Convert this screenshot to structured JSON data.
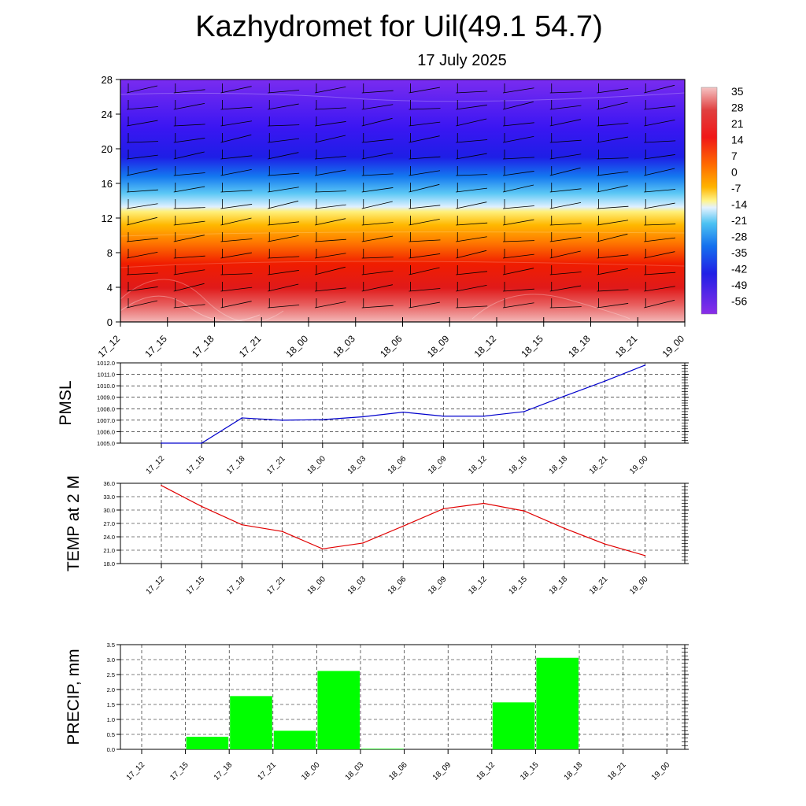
{
  "title": "Kazhydromet for Uil(49.1 54.7)",
  "subtitle": "17 July 2025",
  "colors": {
    "pmsl_line": "#0000cc",
    "temp_line": "#e00000",
    "precip_bar": "#00ff00",
    "grid": "#000000"
  },
  "chart_data": [
    {
      "type": "heatmap",
      "title": "",
      "x": [
        "17_12",
        "17_15",
        "17_18",
        "17_21",
        "18_00",
        "18_03",
        "18_06",
        "18_09",
        "18_12",
        "18_15",
        "18_18",
        "18_21",
        "19_00"
      ],
      "y_ticks": [
        0,
        4,
        8,
        12,
        16,
        20,
        24,
        28
      ],
      "ylim": [
        0,
        28
      ],
      "colorbar_labels": [
        "35",
        "28",
        "21",
        "14",
        "7",
        "0",
        "-7",
        "-14",
        "-21",
        "-28",
        "-35",
        "-42",
        "-49",
        "-56"
      ],
      "colormap": "temperature: deep violet (-56) through blue, cyan, pale yellow near -10, orange, red, pale pink (35)",
      "profile": "warmest near the surface (~35 at lowest levels), decreasing with height; transition to freezing near 13–14; coldest about -56 around 20–28",
      "overlay": "wind barbs at each time step and level",
      "grid": false
    },
    {
      "type": "line",
      "ylabel": "PMSL",
      "x": [
        "17_12",
        "17_15",
        "17_18",
        "17_21",
        "18_00",
        "18_03",
        "18_06",
        "18_09",
        "18_12",
        "18_15",
        "18_18",
        "18_21",
        "19_00"
      ],
      "y_ticks": [
        "1005.0",
        "1006.0",
        "1007.0",
        "1008.0",
        "1009.0",
        "1010.0",
        "1011.0",
        "1012.0"
      ],
      "ylim": [
        1005.0,
        1012.0
      ],
      "series": [
        {
          "values": [
            1005.0,
            1005.0,
            1007.2,
            1007.0,
            1007.05,
            1007.3,
            1007.7,
            1007.35,
            1007.35,
            1007.75,
            1009.1,
            1010.4,
            1011.8
          ]
        }
      ],
      "grid": true
    },
    {
      "type": "line",
      "ylabel": "TEMP at 2 M",
      "x": [
        "17_12",
        "17_15",
        "17_18",
        "17_21",
        "18_00",
        "18_03",
        "18_06",
        "18_09",
        "18_12",
        "18_15",
        "18_18",
        "18_21",
        "19_00"
      ],
      "y_ticks": [
        "18.0",
        "21.0",
        "24.0",
        "27.0",
        "30.0",
        "33.0",
        "36.0"
      ],
      "ylim": [
        18.0,
        36.0
      ],
      "series": [
        {
          "values": [
            35.5,
            30.8,
            26.7,
            25.2,
            21.3,
            22.6,
            26.4,
            30.3,
            31.5,
            29.8,
            25.9,
            22.4,
            19.8
          ]
        }
      ],
      "grid": true
    },
    {
      "type": "bar",
      "ylabel": "PRECIP, mm",
      "x": [
        "17_12",
        "17_15",
        "17_18",
        "17_21",
        "18_00",
        "18_03",
        "18_06",
        "18_09",
        "18_12",
        "18_15",
        "18_18",
        "18_21",
        "19_00"
      ],
      "y_ticks": [
        "0.0",
        "0.5",
        "1.0",
        "1.5",
        "2.0",
        "2.5",
        "3.0",
        "3.5"
      ],
      "ylim": [
        0.0,
        3.5
      ],
      "series": [
        {
          "values": [
            0.0,
            0.42,
            1.78,
            0.62,
            2.62,
            0.02,
            0.0,
            0.0,
            1.57,
            3.06,
            0.0,
            0.0,
            0.0
          ]
        }
      ],
      "grid": true
    }
  ]
}
